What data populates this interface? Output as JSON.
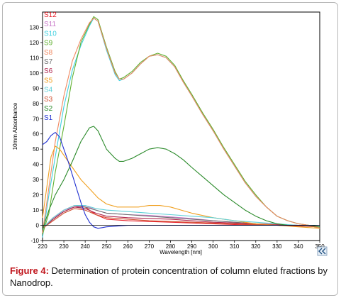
{
  "figure": {
    "caption_label": "Figure 4:",
    "caption_text": " Determination of protein concentration of column eluted fractions by Nanodrop."
  },
  "chart_data": {
    "type": "line",
    "xlabel": "Wavelength [nm]",
    "ylabel": "10mm Absorbance",
    "xlim": [
      220,
      350
    ],
    "ylim": [
      -10,
      140
    ],
    "xticks": [
      220,
      230,
      240,
      250,
      260,
      270,
      280,
      290,
      300,
      310,
      320,
      330,
      340,
      350
    ],
    "yticks": [
      -10,
      0,
      10,
      20,
      30,
      40,
      50,
      60,
      70,
      80,
      90,
      100,
      110,
      120,
      130
    ],
    "legend_position": "left-inside",
    "corner_icon": "double-chevron-left-icon",
    "series": [
      {
        "name": "S12",
        "color": "#e8202a",
        "x": [
          220,
          225,
          230,
          235,
          240,
          245,
          250,
          260,
          270,
          280,
          290,
          300,
          310,
          320,
          330,
          340,
          350
        ],
        "y": [
          -2,
          5,
          10,
          13,
          12,
          7,
          4,
          3,
          2.5,
          2,
          1.5,
          1,
          0.5,
          0.2,
          0,
          -0.5,
          -1
        ]
      },
      {
        "name": "S11",
        "color": "#c878c8",
        "x": [
          220,
          225,
          230,
          235,
          240,
          245,
          250,
          260,
          270,
          280,
          290,
          300,
          310,
          320,
          330,
          340,
          350
        ],
        "y": [
          -2,
          4,
          10,
          12,
          13,
          10,
          8,
          7,
          6.5,
          5.5,
          4.5,
          3,
          2,
          1,
          0.5,
          0,
          -1
        ]
      },
      {
        "name": "S10",
        "color": "#40d0e0",
        "x": [
          220,
          223,
          226,
          230,
          234,
          238,
          242,
          244,
          246,
          250,
          254,
          256,
          258,
          262,
          266,
          270,
          274,
          278,
          282,
          286,
          290,
          295,
          300,
          305,
          310,
          315,
          320,
          325,
          330,
          335,
          340,
          345,
          350
        ],
        "y": [
          -8,
          20,
          45,
          78,
          102,
          118,
          131,
          136,
          134,
          115,
          99,
          95,
          96,
          100,
          106,
          111,
          112,
          110,
          104,
          94,
          85,
          73,
          62,
          50,
          39,
          28,
          19,
          12,
          6,
          3,
          1,
          0,
          -2
        ]
      },
      {
        "name": "S9",
        "color": "#60b030",
        "x": [
          220,
          223,
          226,
          230,
          234,
          238,
          242,
          244,
          246,
          250,
          254,
          256,
          258,
          262,
          266,
          270,
          274,
          278,
          282,
          286,
          290,
          295,
          300,
          305,
          310,
          315,
          320,
          325,
          330,
          335,
          340,
          345,
          350
        ],
        "y": [
          -6,
          8,
          35,
          65,
          97,
          120,
          132,
          137,
          135,
          117,
          101,
          96,
          97,
          101,
          107,
          111,
          113,
          111,
          105,
          95,
          86,
          74,
          63,
          51,
          40,
          29,
          20,
          12,
          6,
          3,
          1,
          0,
          -2
        ]
      },
      {
        "name": "S8",
        "color": "#f08860",
        "x": [
          220,
          223,
          226,
          230,
          234,
          238,
          242,
          244,
          246,
          250,
          254,
          256,
          258,
          262,
          266,
          270,
          274,
          278,
          282,
          286,
          290,
          295,
          300,
          305,
          310,
          315,
          320,
          325,
          330,
          335,
          340,
          345,
          350
        ],
        "y": [
          -5,
          25,
          55,
          85,
          108,
          122,
          133,
          136,
          134,
          116,
          100,
          96,
          96,
          100,
          106,
          111,
          112,
          110,
          104,
          94,
          85,
          73,
          62,
          50,
          39,
          28,
          19,
          12,
          6,
          3,
          1,
          0,
          -2
        ]
      },
      {
        "name": "S7",
        "color": "#707070",
        "x": [
          220,
          225,
          230,
          235,
          240,
          245,
          250,
          260,
          270,
          280,
          290,
          300,
          310,
          320,
          330,
          340,
          350
        ],
        "y": [
          -2,
          4,
          9,
          12,
          12,
          10,
          8,
          7,
          6,
          5,
          4,
          3,
          2,
          1,
          0.5,
          0,
          -1
        ]
      },
      {
        "name": "S6",
        "color": "#b02850",
        "x": [
          220,
          225,
          230,
          235,
          240,
          245,
          250,
          260,
          270,
          280,
          290,
          300,
          310,
          320,
          330,
          340,
          350
        ],
        "y": [
          -2,
          4,
          9,
          12,
          11,
          8,
          6,
          5,
          4.5,
          4,
          3,
          2,
          1.5,
          1,
          0.5,
          0,
          -1
        ]
      },
      {
        "name": "S5",
        "color": "#f0a020",
        "x": [
          220,
          222,
          224,
          226,
          228,
          230,
          234,
          238,
          242,
          246,
          250,
          255,
          260,
          265,
          270,
          275,
          280,
          285,
          290,
          300,
          310,
          320,
          330,
          340,
          350
        ],
        "y": [
          5,
          25,
          45,
          52,
          50,
          46,
          38,
          30,
          24,
          18,
          14,
          12,
          12,
          12,
          13,
          13,
          12,
          10,
          8,
          5,
          3,
          1,
          0,
          -1,
          -2
        ]
      },
      {
        "name": "S4",
        "color": "#60d0d8",
        "x": [
          220,
          225,
          230,
          235,
          240,
          245,
          250,
          260,
          270,
          280,
          290,
          300,
          310,
          320,
          330,
          340,
          350
        ],
        "y": [
          -2,
          5,
          10,
          13,
          13,
          11,
          10,
          9,
          8,
          7,
          6,
          5,
          3,
          2,
          1,
          0,
          -1
        ]
      },
      {
        "name": "S3",
        "color": "#d05030",
        "x": [
          220,
          225,
          230,
          235,
          240,
          245,
          250,
          260,
          270,
          280,
          290,
          300,
          310,
          320,
          330,
          340,
          350
        ],
        "y": [
          -2,
          3,
          8,
          11,
          10,
          7,
          5,
          4,
          3,
          2.5,
          2,
          1.5,
          1,
          0.5,
          0,
          -0.5,
          -1
        ]
      },
      {
        "name": "S2",
        "color": "#2a8a2a",
        "x": [
          220,
          223,
          226,
          230,
          234,
          238,
          242,
          244,
          246,
          250,
          254,
          256,
          258,
          262,
          266,
          270,
          274,
          278,
          282,
          286,
          290,
          295,
          300,
          305,
          310,
          315,
          320,
          325,
          330,
          335,
          340,
          345,
          350
        ],
        "y": [
          -3,
          10,
          20,
          30,
          42,
          55,
          64,
          65,
          62,
          50,
          44,
          42,
          42,
          44,
          47,
          50,
          51,
          50,
          47,
          43,
          38,
          32,
          26,
          20,
          15,
          10,
          6,
          3,
          1,
          0,
          0,
          0,
          -1
        ]
      },
      {
        "name": "S1",
        "color": "#2030d0",
        "x": [
          220,
          222,
          224,
          226,
          228,
          230,
          232,
          234,
          236,
          238,
          240,
          242,
          244,
          246,
          248,
          250,
          255,
          260,
          270,
          280,
          290,
          300,
          310,
          320,
          330,
          340,
          350
        ],
        "y": [
          53,
          55,
          59,
          61,
          58,
          50,
          42,
          33,
          24,
          15,
          7,
          2,
          -1,
          -2,
          -1.5,
          -1,
          -0.5,
          0,
          0,
          0,
          0,
          0,
          0,
          0,
          0,
          0,
          0
        ]
      }
    ]
  }
}
